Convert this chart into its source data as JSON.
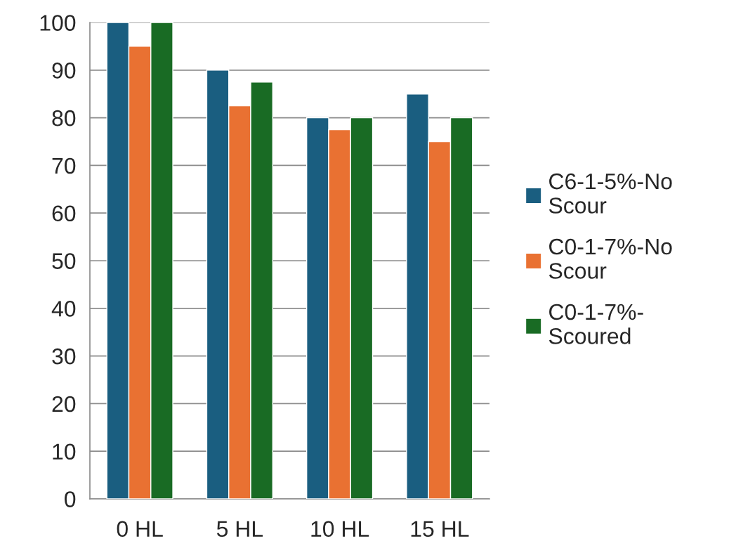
{
  "chart_data": {
    "type": "bar",
    "categories": [
      "0 HL",
      "5 HL",
      "10 HL",
      "15 HL"
    ],
    "series": [
      {
        "name": "C6-1-5%-No\nScour",
        "color": "#1a5e80",
        "values": [
          100,
          90,
          80,
          85
        ]
      },
      {
        "name": "C0-1-7%-No\nScour",
        "color": "#e97132",
        "values": [
          95,
          82.5,
          77.5,
          75
        ]
      },
      {
        "name": "C0-1-7%-\nScoured",
        "color": "#196b24",
        "values": [
          100,
          87.5,
          80,
          80
        ]
      }
    ],
    "ylim": [
      0,
      100
    ],
    "yticks": [
      0,
      10,
      20,
      30,
      40,
      50,
      60,
      70,
      80,
      90,
      100
    ],
    "grid": "y",
    "legend": "right"
  }
}
